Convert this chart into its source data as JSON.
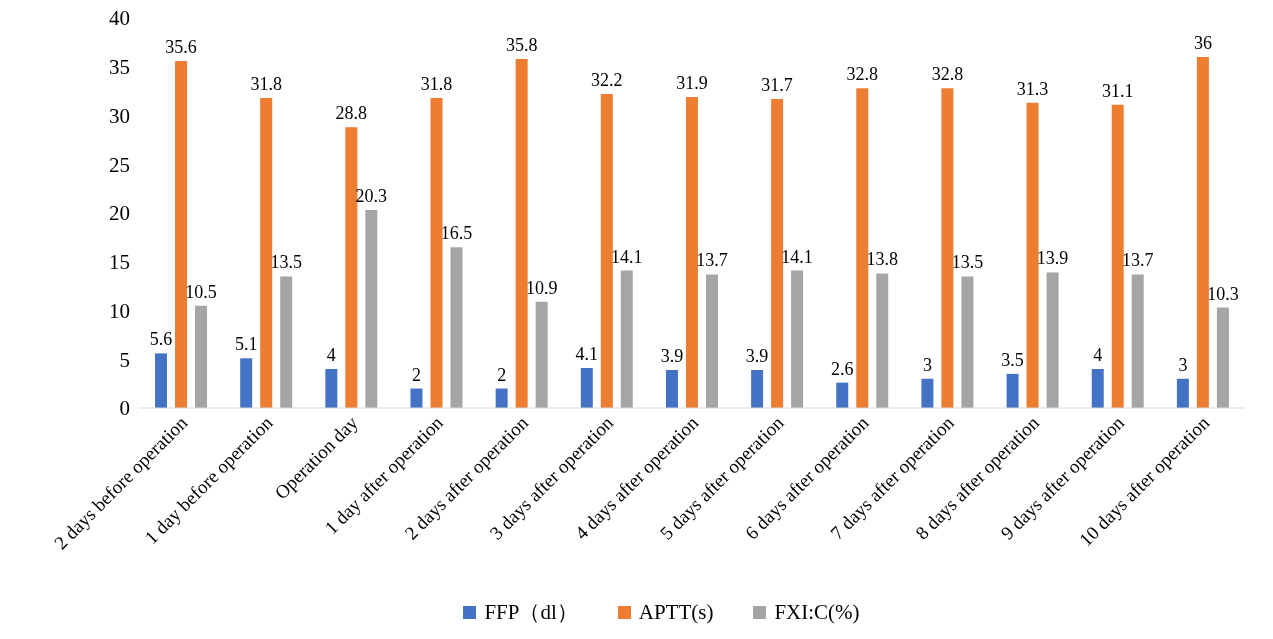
{
  "chart_data": {
    "type": "bar",
    "categories": [
      "2 days before operation",
      "1 day before operation",
      "Operation day",
      "1 day after operation",
      "2 days after operation",
      "3 days after operation",
      "4 days after operation",
      "5 days after operation",
      "6 days after operation",
      "7 days after operation",
      "8 days after operation",
      "9 days after operation",
      "10 days after operation"
    ],
    "series": [
      {
        "name": "FFP（dl）",
        "color": "#4472c4",
        "values": [
          5.6,
          5.1,
          4,
          2,
          2,
          4.1,
          3.9,
          3.9,
          2.6,
          3,
          3.5,
          4,
          3
        ]
      },
      {
        "name": "APTT(s)",
        "color": "#ed7d31",
        "values": [
          35.6,
          31.8,
          28.8,
          31.8,
          35.8,
          32.2,
          31.9,
          31.7,
          32.8,
          32.8,
          31.3,
          31.1,
          36
        ]
      },
      {
        "name": "FXI:C(%)",
        "color": "#a5a5a5",
        "values": [
          10.5,
          13.5,
          20.3,
          16.5,
          10.9,
          14.1,
          13.7,
          14.1,
          13.8,
          13.5,
          13.9,
          13.7,
          10.3
        ]
      }
    ],
    "ylim": [
      0,
      40
    ],
    "yticks": [
      0,
      5,
      10,
      15,
      20,
      25,
      30,
      35,
      40
    ],
    "grid": false,
    "legend": "bottom",
    "data_labels": true
  }
}
